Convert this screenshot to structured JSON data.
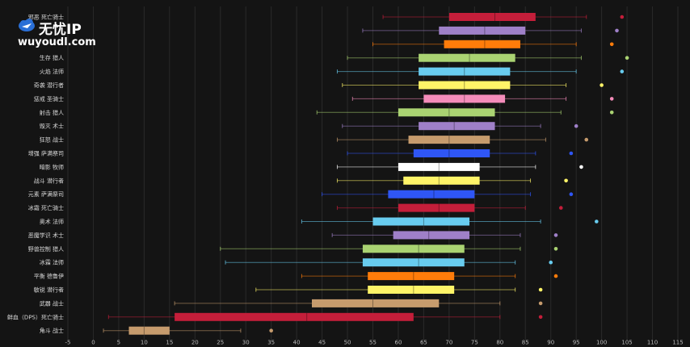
{
  "watermark": {
    "name_cn": "无忧",
    "name_ip": "IP",
    "url": "wuyoudl.com"
  },
  "colors": {
    "background": "#141414",
    "whisker": "#e8c97a"
  },
  "chart_data": {
    "type": "boxplot",
    "orientation": "horizontal",
    "xlim": [
      -5,
      115
    ],
    "xticks": [
      -5,
      0,
      5,
      10,
      15,
      20,
      25,
      30,
      35,
      40,
      45,
      50,
      55,
      60,
      65,
      70,
      75,
      80,
      85,
      90,
      95,
      100,
      105,
      110,
      115
    ],
    "grid": true,
    "series": [
      {
        "label": "邪恶 死亡骑士",
        "color": "#c41e3a",
        "min": 57,
        "q1": 70,
        "median": 79,
        "q3": 87,
        "max": 97,
        "outlier": 104
      },
      {
        "label": "",
        "color": "#9f80c8",
        "min": 53,
        "q1": 68,
        "median": 77,
        "q3": 85,
        "max": 96,
        "outlier": 103
      },
      {
        "label": "",
        "color": "#ff7c0a",
        "min": 55,
        "q1": 69,
        "median": 77,
        "q3": 84,
        "max": 95,
        "outlier": 102
      },
      {
        "label": "生存 猎人",
        "color": "#aad372",
        "min": 50,
        "q1": 64,
        "median": 74,
        "q3": 83,
        "max": 96,
        "outlier": 105
      },
      {
        "label": "火焰 法师",
        "color": "#68ccef",
        "min": 48,
        "q1": 64,
        "median": 73,
        "q3": 82,
        "max": 95,
        "outlier": 104
      },
      {
        "label": "奇袭 潜行者",
        "color": "#fff468",
        "min": 49,
        "q1": 64,
        "median": 73,
        "q3": 82,
        "max": 93,
        "outlier": 100
      },
      {
        "label": "惩戒 圣骑士",
        "color": "#f48cba",
        "min": 51,
        "q1": 65,
        "median": 73,
        "q3": 81,
        "max": 93,
        "outlier": 102
      },
      {
        "label": "射击 猎人",
        "color": "#aad372",
        "min": 44,
        "q1": 60,
        "median": 70,
        "q3": 79,
        "max": 92,
        "outlier": 102
      },
      {
        "label": "毁灭 术士",
        "color": "#9f80c8",
        "min": 49,
        "q1": 64,
        "median": 71,
        "q3": 79,
        "max": 88,
        "outlier": 95
      },
      {
        "label": "狂怒 战士",
        "color": "#c69b6d",
        "min": 48,
        "q1": 62,
        "median": 70,
        "q3": 78,
        "max": 89,
        "outlier": 97
      },
      {
        "label": "增强 萨满祭司",
        "color": "#2f56f5",
        "min": 50,
        "q1": 63,
        "median": 70,
        "q3": 78,
        "max": 87,
        "outlier": 94
      },
      {
        "label": "暗影 牧师",
        "color": "#ffffff",
        "min": 48,
        "q1": 60,
        "median": 68,
        "q3": 76,
        "max": 87,
        "outlier": 96
      },
      {
        "label": "战斗 潜行者",
        "color": "#fff468",
        "min": 48,
        "q1": 61,
        "median": 68,
        "q3": 76,
        "max": 86,
        "outlier": 93
      },
      {
        "label": "元素 萨满祭司",
        "color": "#2f56f5",
        "min": 45,
        "q1": 58,
        "median": 67,
        "q3": 75,
        "max": 86,
        "outlier": 94
      },
      {
        "label": "冰霜 死亡骑士",
        "color": "#c41e3a",
        "min": 48,
        "q1": 60,
        "median": 68,
        "q3": 75,
        "max": 85,
        "outlier": 92
      },
      {
        "label": "奥术 法师",
        "color": "#68ccef",
        "min": 41,
        "q1": 55,
        "median": 65,
        "q3": 74,
        "max": 88,
        "outlier": 99
      },
      {
        "label": "恶魔学识 术士",
        "color": "#9f80c8",
        "min": 47,
        "q1": 59,
        "median": 66,
        "q3": 74,
        "max": 84,
        "outlier": 91
      },
      {
        "label": "野兽控制 猎人",
        "color": "#aad372",
        "min": 25,
        "q1": 53,
        "median": 64,
        "q3": 73,
        "max": 84,
        "outlier": 91
      },
      {
        "label": "冰霜 法师",
        "color": "#68ccef",
        "min": 26,
        "q1": 53,
        "median": 64,
        "q3": 73,
        "max": 83,
        "outlier": 90
      },
      {
        "label": "平衡 德鲁伊",
        "color": "#ff7c0a",
        "min": 41,
        "q1": 54,
        "median": 63,
        "q3": 71,
        "max": 83,
        "outlier": 91
      },
      {
        "label": "敏锐 潜行者",
        "color": "#fff468",
        "min": 32,
        "q1": 54,
        "median": 63,
        "q3": 71,
        "max": 83,
        "outlier": 88
      },
      {
        "label": "武器 战士",
        "color": "#c69b6d",
        "min": 16,
        "q1": 43,
        "median": 55,
        "q3": 68,
        "max": 80,
        "outlier": 88
      },
      {
        "label": "鲜血（DPS）死亡骑士",
        "color": "#c41e3a",
        "min": 3,
        "q1": 16,
        "median": 42,
        "q3": 63,
        "max": 80,
        "outlier": 88
      },
      {
        "label": "角斗 战士",
        "color": "#c69b6d",
        "min": 2,
        "q1": 7,
        "median": 10,
        "q3": 15,
        "max": 29,
        "outlier": 35
      }
    ]
  }
}
